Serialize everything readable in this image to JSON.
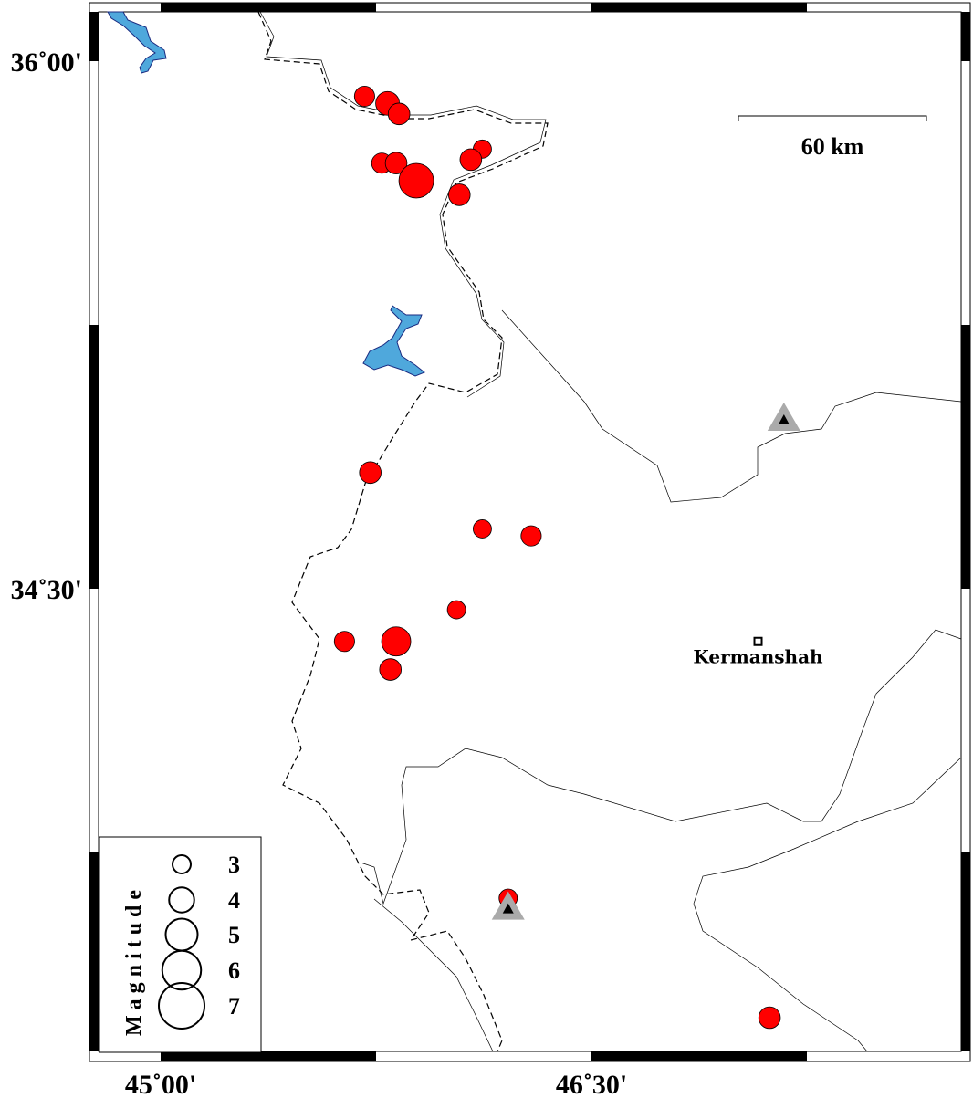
{
  "map": {
    "frame_ticks": {
      "lon_labels": [
        {
          "value": 45.0,
          "text": "45˚00'"
        },
        {
          "value": 46.5,
          "text": "46˚30'"
        }
      ],
      "lat_labels": [
        {
          "value": 36.0,
          "text": "36˚00'"
        },
        {
          "value": 34.5,
          "text": "34˚30'"
        }
      ]
    },
    "scale_bar": {
      "label": "60 km"
    },
    "cities": [
      {
        "name": "Kermanshah",
        "lon": 47.08,
        "lat": 34.35
      }
    ],
    "stations": [
      {
        "lon": 47.17,
        "lat": 34.98
      },
      {
        "lon": 46.21,
        "lat": 33.59
      }
    ],
    "events": [
      {
        "lon": 45.71,
        "lat": 35.9,
        "mag": 3.3
      },
      {
        "lon": 45.79,
        "lat": 35.88,
        "mag": 3.8
      },
      {
        "lon": 45.83,
        "lat": 35.85,
        "mag": 3.5
      },
      {
        "lon": 45.77,
        "lat": 35.71,
        "mag": 3.3
      },
      {
        "lon": 45.82,
        "lat": 35.71,
        "mag": 3.5
      },
      {
        "lon": 45.89,
        "lat": 35.66,
        "mag": 5.4
      },
      {
        "lon": 46.12,
        "lat": 35.75,
        "mag": 3.0
      },
      {
        "lon": 46.08,
        "lat": 35.72,
        "mag": 3.5
      },
      {
        "lon": 46.04,
        "lat": 35.62,
        "mag": 3.5
      },
      {
        "lon": 45.73,
        "lat": 34.83,
        "mag": 3.5
      },
      {
        "lon": 46.12,
        "lat": 34.67,
        "mag": 3.0
      },
      {
        "lon": 46.29,
        "lat": 34.65,
        "mag": 3.3
      },
      {
        "lon": 46.03,
        "lat": 34.44,
        "mag": 3.0
      },
      {
        "lon": 45.64,
        "lat": 34.35,
        "mag": 3.3
      },
      {
        "lon": 45.82,
        "lat": 34.35,
        "mag": 4.6
      },
      {
        "lon": 45.8,
        "lat": 34.27,
        "mag": 3.5
      },
      {
        "lon": 46.21,
        "lat": 33.62,
        "mag": 3.0
      },
      {
        "lon": 47.12,
        "lat": 33.28,
        "mag": 3.5
      }
    ],
    "colors": {
      "event": "#ff0000",
      "water": "#4fa8dc",
      "station": "#aaaaaa"
    }
  },
  "legend": {
    "title": "Magnitude",
    "items": [
      {
        "mag": 3,
        "label": "3"
      },
      {
        "mag": 4,
        "label": "4"
      },
      {
        "mag": 5,
        "label": "5"
      },
      {
        "mag": 6,
        "label": "6"
      },
      {
        "mag": 7,
        "label": "7"
      }
    ]
  }
}
